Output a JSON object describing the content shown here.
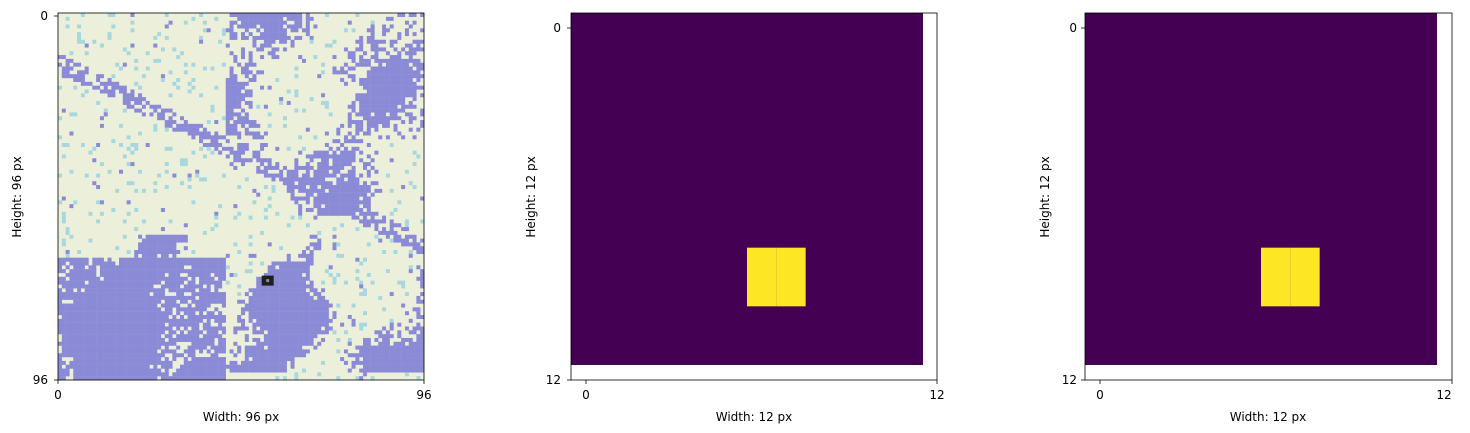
{
  "chart_data": [
    {
      "type": "heatmap",
      "panel": "satellite-image",
      "xlabel": "Width: 96 px",
      "ylabel": "Height: 96 px",
      "xlim": [
        0,
        96
      ],
      "ylim": [
        96,
        0
      ],
      "xticks": [
        "0",
        "96"
      ],
      "yticks": [
        "0",
        "96"
      ],
      "grid": false,
      "colors": {
        "background_tone": "#ecf0da",
        "cloud_tone": "#8a8ad6",
        "cyan_tone": "#a8d8df",
        "dark_spot": "#1f1f1f"
      },
      "features": {
        "dark_spot_center": [
          55,
          70
        ]
      }
    },
    {
      "type": "heatmap",
      "panel": "mask-1",
      "xlabel": "Width: 12 px",
      "ylabel": "Height: 12 px",
      "xlim": [
        0,
        12
      ],
      "ylim": [
        12,
        0
      ],
      "xticks": [
        "0",
        "12"
      ],
      "yticks": [
        "0",
        "12"
      ],
      "grid": false,
      "matrix_shape": [
        12,
        12
      ],
      "low_color": "#440154",
      "high_color": "#fde725",
      "high_cells": [
        [
          8,
          6
        ],
        [
          8,
          7
        ],
        [
          9,
          6
        ],
        [
          9,
          7
        ]
      ]
    },
    {
      "type": "heatmap",
      "panel": "mask-2",
      "xlabel": "Width: 12 px",
      "ylabel": "Height: 12 px",
      "xlim": [
        0,
        12
      ],
      "ylim": [
        12,
        0
      ],
      "xticks": [
        "0",
        "12"
      ],
      "yticks": [
        "0",
        "12"
      ],
      "grid": false,
      "matrix_shape": [
        12,
        12
      ],
      "low_color": "#440154",
      "high_color": "#fde725",
      "high_cells": [
        [
          8,
          6
        ],
        [
          8,
          7
        ],
        [
          9,
          6
        ],
        [
          9,
          7
        ]
      ]
    }
  ]
}
